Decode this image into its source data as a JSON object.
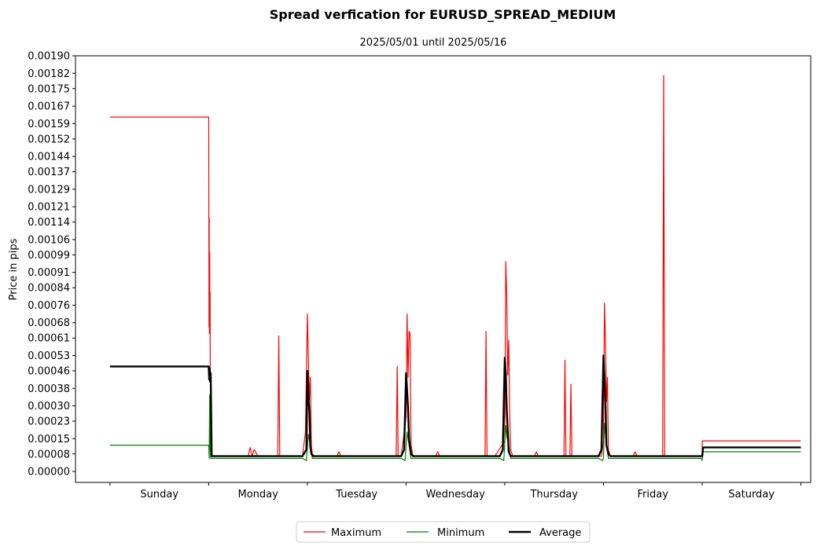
{
  "chart_data": {
    "type": "line",
    "title": "Spread verfication for EURUSD_SPREAD_MEDIUM",
    "subtitle": "2025/05/01 until 2025/05/16",
    "ylabel": "Price in pips",
    "xlabel": "",
    "ylim": [
      -5e-05,
      0.0019
    ],
    "xlim": [
      -0.35,
      7.1
    ],
    "y_ticks": [
      "0.00000",
      "0.00008",
      "0.00015",
      "0.00023",
      "0.00030",
      "0.00038",
      "0.00046",
      "0.00053",
      "0.00061",
      "0.00068",
      "0.00076",
      "0.00084",
      "0.00091",
      "0.00099",
      "0.00106",
      "0.00114",
      "0.00121",
      "0.00129",
      "0.00137",
      "0.00144",
      "0.00152",
      "0.00159",
      "0.00167",
      "0.00175",
      "0.00182",
      "0.00190"
    ],
    "categories": [
      "Sunday",
      "Monday",
      "Tuesday",
      "Wednesday",
      "Thursday",
      "Friday",
      "Saturday"
    ],
    "legend": {
      "placement": "bottom-center",
      "entries": [
        "Maximum",
        "Minimum",
        "Average"
      ]
    },
    "series": [
      {
        "name": "Maximum",
        "color": "#ff0000",
        "x": [
          0,
          1,
          1.001,
          1.003,
          1.005,
          1.007,
          1.01,
          1.012,
          1.014,
          1.016,
          1.018,
          1.02,
          1.025,
          1.04,
          1.1,
          1.4,
          1.42,
          1.44,
          1.46,
          1.5,
          1.7,
          1.71,
          1.72,
          1.73,
          1.8,
          1.95,
          1.98,
          2.0,
          2.01,
          2.02,
          2.03,
          2.04,
          2.05,
          2.07,
          2.1,
          2.3,
          2.32,
          2.34,
          2.5,
          2.9,
          2.91,
          2.92,
          2.95,
          3.0,
          3.01,
          3.02,
          3.03,
          3.04,
          3.05,
          3.07,
          3.1,
          3.3,
          3.32,
          3.34,
          3.5,
          3.8,
          3.81,
          3.82,
          3.9,
          4.0,
          4.01,
          4.02,
          4.03,
          4.04,
          4.05,
          4.06,
          4.08,
          4.1,
          4.3,
          4.32,
          4.34,
          4.5,
          4.6,
          4.61,
          4.62,
          4.66,
          4.67,
          4.68,
          4.8,
          4.98,
          5.0,
          5.01,
          5.02,
          5.03,
          5.04,
          5.05,
          5.07,
          5.1,
          5.3,
          5.32,
          5.34,
          5.5,
          5.6,
          5.61,
          5.62,
          5.7,
          5.99,
          6.0,
          6.001,
          6.01,
          6.02,
          7.0
        ],
        "y": [
          0.00162,
          0.00162,
          0.0013,
          0.00066,
          0.00116,
          0.00063,
          0.001,
          0.00068,
          0.00082,
          0.0004,
          0.00046,
          0.0001,
          8e-05,
          7e-05,
          7e-05,
          7e-05,
          0.00011,
          7e-05,
          0.0001,
          7e-05,
          7e-05,
          0.00062,
          7e-05,
          7e-05,
          7e-05,
          7e-05,
          0.00018,
          0.00072,
          0.00051,
          0.00033,
          0.00043,
          0.00012,
          8e-05,
          7e-05,
          7e-05,
          7e-05,
          9e-05,
          7e-05,
          7e-05,
          7e-05,
          0.00048,
          7e-05,
          7e-05,
          0.00025,
          0.00072,
          0.00043,
          0.00064,
          0.00063,
          0.00012,
          7e-05,
          7e-05,
          7e-05,
          9e-05,
          7e-05,
          7e-05,
          7e-05,
          0.00064,
          7e-05,
          7e-05,
          0.00014,
          0.00096,
          0.00081,
          0.00044,
          0.0006,
          0.00026,
          0.0001,
          7e-05,
          7e-05,
          7e-05,
          9e-05,
          7e-05,
          7e-05,
          7e-05,
          0.00051,
          7e-05,
          7e-05,
          0.0004,
          7e-05,
          7e-05,
          7e-05,
          0.00014,
          0.00077,
          0.0006,
          0.00032,
          0.00043,
          0.0001,
          7e-05,
          7e-05,
          7e-05,
          9e-05,
          7e-05,
          7e-05,
          7e-05,
          0.00181,
          7e-05,
          7e-05,
          7e-05,
          7e-05,
          0.00014,
          0.00014,
          0.00014,
          0.00014
        ]
      },
      {
        "name": "Minimum",
        "color": "#008000",
        "x": [
          0,
          1,
          1.005,
          1.01,
          1.015,
          1.02,
          1.03,
          1.1,
          1.5,
          1.95,
          1.99,
          2.01,
          2.03,
          2.05,
          2.1,
          2.5,
          2.95,
          2.99,
          3.01,
          3.03,
          3.05,
          3.1,
          3.5,
          3.95,
          3.99,
          4.01,
          4.02,
          4.04,
          4.06,
          4.1,
          4.5,
          4.95,
          4.99,
          5.0,
          5.01,
          5.03,
          5.05,
          5.1,
          5.5,
          5.99,
          6.0,
          6.01,
          6.02,
          7.0
        ],
        "y": [
          0.00012,
          0.00012,
          6e-05,
          0.00035,
          0.00012,
          6e-05,
          6e-05,
          6e-05,
          6e-05,
          6e-05,
          5e-05,
          0.00017,
          0.00012,
          6e-05,
          6e-05,
          6e-05,
          6e-05,
          5e-05,
          0.00018,
          0.00012,
          6e-05,
          6e-05,
          6e-05,
          6e-05,
          5e-05,
          0.00021,
          0.00016,
          0.00012,
          6e-05,
          6e-05,
          6e-05,
          6e-05,
          5e-05,
          6e-05,
          0.00022,
          0.00012,
          6e-05,
          6e-05,
          6e-05,
          6e-05,
          5e-05,
          9e-05,
          9e-05,
          9e-05
        ]
      },
      {
        "name": "Average",
        "color": "#000000",
        "x": [
          0,
          1,
          1.005,
          1.01,
          1.015,
          1.02,
          1.03,
          1.05,
          1.5,
          1.95,
          1.99,
          2.0,
          2.01,
          2.02,
          2.03,
          2.04,
          2.06,
          2.1,
          2.5,
          2.95,
          2.98,
          3.0,
          3.01,
          3.02,
          3.03,
          3.05,
          3.07,
          3.1,
          3.5,
          3.95,
          3.98,
          4.0,
          4.01,
          4.02,
          4.03,
          4.04,
          4.06,
          4.1,
          4.5,
          4.95,
          4.98,
          5.0,
          5.01,
          5.02,
          5.03,
          5.05,
          5.07,
          5.1,
          5.5,
          5.99,
          6.0,
          6.01,
          6.02,
          7.0
        ],
        "y": [
          0.00048,
          0.00048,
          0.00042,
          0.00047,
          0.00041,
          0.00045,
          7e-05,
          7e-05,
          7e-05,
          7e-05,
          0.0001,
          0.00046,
          0.00035,
          0.00027,
          0.00011,
          8e-05,
          7e-05,
          7e-05,
          7e-05,
          7e-05,
          0.0001,
          0.00045,
          0.00037,
          0.00029,
          0.00015,
          8e-05,
          7e-05,
          7e-05,
          7e-05,
          7e-05,
          0.0001,
          0.00052,
          0.00045,
          0.00028,
          0.00019,
          9e-05,
          7e-05,
          7e-05,
          7e-05,
          7e-05,
          0.0001,
          0.00053,
          0.00042,
          0.00032,
          0.00012,
          8e-05,
          7e-05,
          7e-05,
          7e-05,
          7e-05,
          7e-05,
          0.00011,
          0.00011,
          0.00011
        ]
      }
    ]
  }
}
